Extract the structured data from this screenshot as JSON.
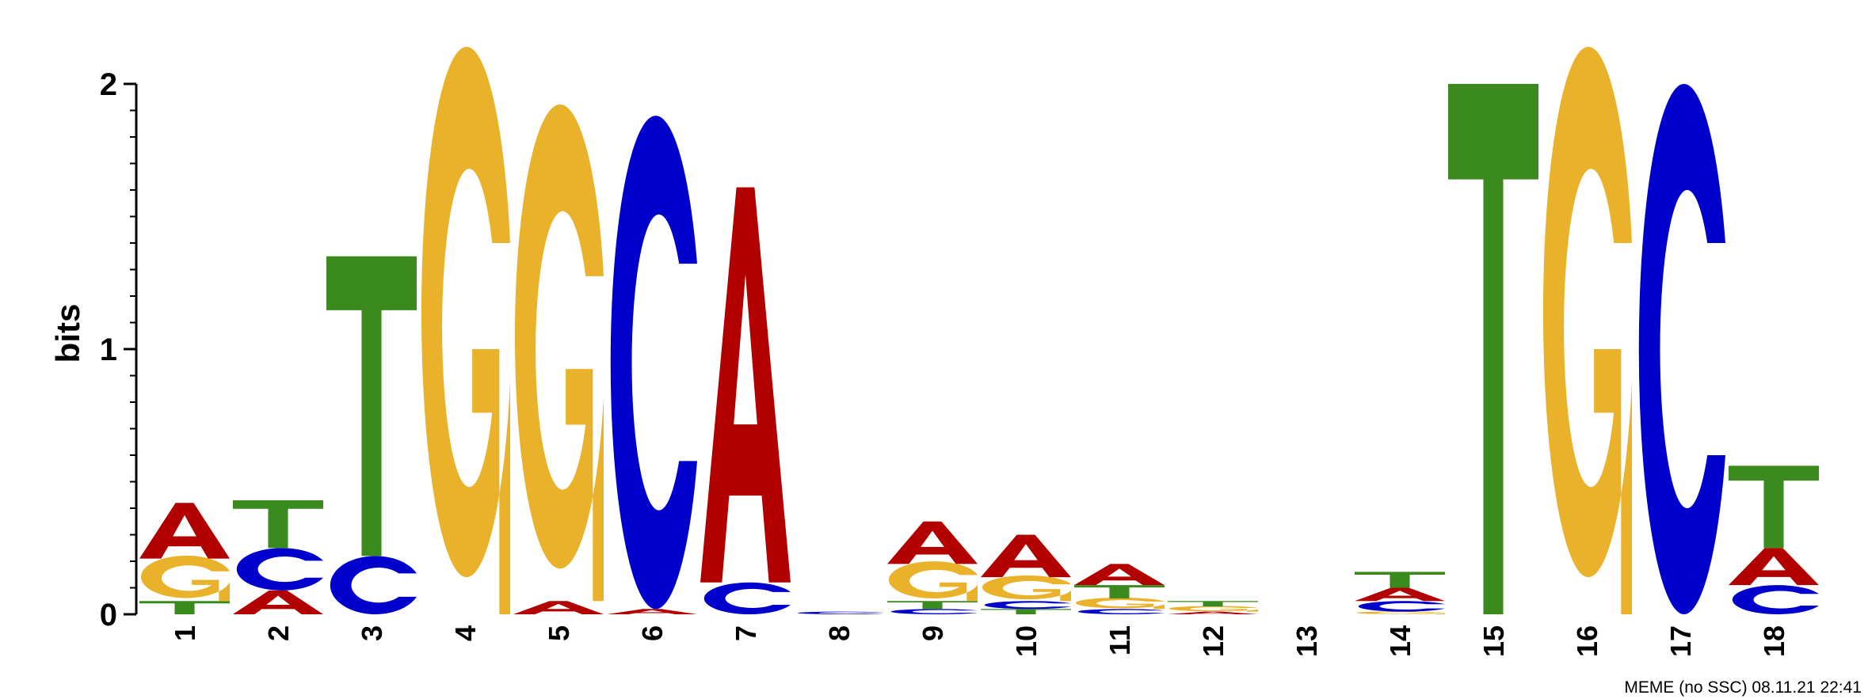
{
  "chart_data": {
    "type": "sequence-logo",
    "ylabel": "bits",
    "ylim": [
      0,
      2
    ],
    "yticks": [
      "0",
      "1",
      "2"
    ],
    "colors": {
      "A": "#B20000",
      "C": "#0000CC",
      "G": "#EAB22A",
      "T": "#3A8A1E"
    },
    "positions": [
      {
        "label": "1",
        "stack": [
          {
            "b": "T",
            "h": 0.05
          },
          {
            "b": "G",
            "h": 0.16
          },
          {
            "b": "A",
            "h": 0.21
          }
        ]
      },
      {
        "label": "2",
        "stack": [
          {
            "b": "A",
            "h": 0.09
          },
          {
            "b": "C",
            "h": 0.16
          },
          {
            "b": "T",
            "h": 0.18
          }
        ]
      },
      {
        "label": "3",
        "stack": [
          {
            "b": "C",
            "h": 0.22
          },
          {
            "b": "T",
            "h": 1.13
          }
        ]
      },
      {
        "label": "4",
        "stack": [
          {
            "b": "G",
            "h": 2.0
          }
        ]
      },
      {
        "label": "5",
        "stack": [
          {
            "b": "A",
            "h": 0.05
          },
          {
            "b": "G",
            "h": 1.75
          }
        ]
      },
      {
        "label": "6",
        "stack": [
          {
            "b": "A",
            "h": 0.02
          },
          {
            "b": "C",
            "h": 1.86
          }
        ]
      },
      {
        "label": "7",
        "stack": [
          {
            "b": "C",
            "h": 0.12
          },
          {
            "b": "A",
            "h": 1.49
          }
        ]
      },
      {
        "label": "8",
        "stack": [
          {
            "b": "C",
            "h": 0.01
          }
        ]
      },
      {
        "label": "9",
        "stack": [
          {
            "b": "C",
            "h": 0.02
          },
          {
            "b": "T",
            "h": 0.03
          },
          {
            "b": "G",
            "h": 0.14
          },
          {
            "b": "A",
            "h": 0.16
          }
        ]
      },
      {
        "label": "10",
        "stack": [
          {
            "b": "T",
            "h": 0.02
          },
          {
            "b": "C",
            "h": 0.03
          },
          {
            "b": "G",
            "h": 0.09
          },
          {
            "b": "A",
            "h": 0.16
          }
        ]
      },
      {
        "label": "11",
        "stack": [
          {
            "b": "C",
            "h": 0.02
          },
          {
            "b": "G",
            "h": 0.04
          },
          {
            "b": "T",
            "h": 0.05
          },
          {
            "b": "A",
            "h": 0.08
          }
        ]
      },
      {
        "label": "12",
        "stack": [
          {
            "b": "A",
            "h": 0.01
          },
          {
            "b": "G",
            "h": 0.02
          },
          {
            "b": "T",
            "h": 0.02
          }
        ]
      },
      {
        "label": "13",
        "stack": []
      },
      {
        "label": "14",
        "stack": [
          {
            "b": "G",
            "h": 0.01
          },
          {
            "b": "C",
            "h": 0.04
          },
          {
            "b": "A",
            "h": 0.05
          },
          {
            "b": "T",
            "h": 0.06
          }
        ]
      },
      {
        "label": "15",
        "stack": [
          {
            "b": "T",
            "h": 2.0
          }
        ]
      },
      {
        "label": "16",
        "stack": [
          {
            "b": "G",
            "h": 2.0
          }
        ]
      },
      {
        "label": "17",
        "stack": [
          {
            "b": "C",
            "h": 2.0
          }
        ]
      },
      {
        "label": "18",
        "stack": [
          {
            "b": "C",
            "h": 0.11
          },
          {
            "b": "A",
            "h": 0.14
          },
          {
            "b": "T",
            "h": 0.31
          }
        ]
      }
    ],
    "footer": "MEME (no SSC) 08.11.21 22:41"
  }
}
